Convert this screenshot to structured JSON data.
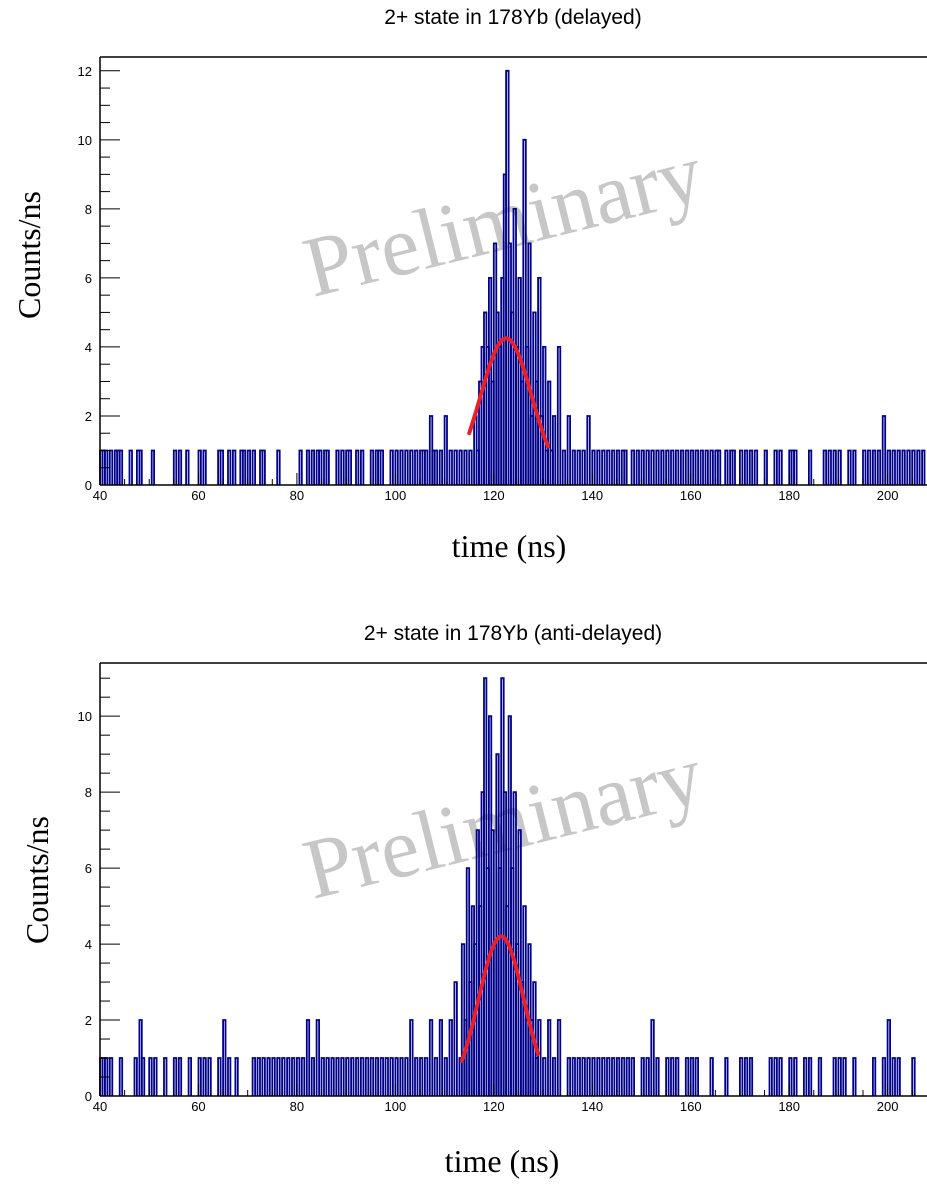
{
  "chart_data": [
    {
      "type": "histogram",
      "title": "2+ state in 178Yb (delayed)",
      "xlabel": "time (ns)",
      "ylabel": "Counts/ns",
      "watermark": "Preliminary",
      "xlim": [
        40,
        208
      ],
      "ylim": [
        0,
        12.4
      ],
      "xticks": [
        40,
        60,
        80,
        100,
        120,
        140,
        160,
        180,
        200
      ],
      "yticks": [
        0,
        2,
        4,
        6,
        8,
        10,
        12
      ],
      "grid": false,
      "histogram_color": "#00008b",
      "fit_color": "#e8202a",
      "bin_width_ns": 0.5,
      "fit": {
        "type": "gaussian",
        "amplitude": 4.25,
        "mean": 122.5,
        "sigma": 5.2,
        "range": [
          115,
          131
        ]
      },
      "peak_bins": [
        [
          116.0,
          2
        ],
        [
          116.5,
          1
        ],
        [
          117.0,
          3
        ],
        [
          117.5,
          4
        ],
        [
          118.0,
          5
        ],
        [
          118.5,
          4
        ],
        [
          119.0,
          6
        ],
        [
          119.5,
          3
        ],
        [
          120.0,
          7
        ],
        [
          120.5,
          5
        ],
        [
          121.0,
          4
        ],
        [
          121.5,
          6
        ],
        [
          122.0,
          9
        ],
        [
          122.5,
          12
        ],
        [
          123.0,
          7
        ],
        [
          123.5,
          5
        ],
        [
          124.0,
          8
        ],
        [
          124.5,
          4
        ],
        [
          125.0,
          6
        ],
        [
          125.5,
          3
        ],
        [
          126.0,
          10
        ],
        [
          126.5,
          4
        ],
        [
          127.0,
          7
        ],
        [
          127.5,
          2
        ],
        [
          128.0,
          5
        ],
        [
          128.5,
          3
        ],
        [
          129.0,
          6
        ],
        [
          129.5,
          2
        ],
        [
          130.0,
          4
        ],
        [
          130.5,
          1
        ],
        [
          131.0,
          3
        ],
        [
          131.5,
          1
        ],
        [
          132.0,
          2
        ],
        [
          133.0,
          4
        ],
        [
          134.0,
          1
        ],
        [
          135.0,
          2
        ]
      ],
      "background_twos": [
        107,
        110,
        127,
        139,
        199
      ],
      "background_ones": [
        40,
        40.5,
        41,
        42,
        43,
        43.5,
        44,
        46,
        47.5,
        48,
        50.5,
        55,
        56,
        57.5,
        60,
        61,
        64,
        64.5,
        66,
        67,
        68.5,
        69,
        70,
        71,
        72.5,
        73,
        76,
        80.5,
        82,
        83,
        84,
        84.5,
        85.5,
        86,
        88,
        89,
        90,
        90.5,
        92,
        93,
        95,
        96,
        96.5,
        97,
        99,
        100,
        101,
        102,
        103,
        104,
        105,
        105.5,
        106,
        107.5,
        108,
        109,
        111,
        112,
        113,
        114,
        115,
        136,
        137,
        138,
        140,
        141,
        142,
        143,
        144,
        145,
        146,
        146.5,
        148,
        149,
        150,
        151,
        152,
        153,
        154,
        155,
        156,
        157,
        158,
        159,
        160,
        161,
        162,
        163,
        164,
        165,
        165.5,
        167,
        168,
        168.5,
        170,
        171,
        172,
        173,
        175,
        177,
        178,
        180,
        180.5,
        181,
        184,
        187,
        188,
        189,
        190,
        192,
        193,
        195,
        196,
        197,
        198,
        200,
        201,
        202,
        203,
        204,
        205,
        206,
        207
      ]
    },
    {
      "type": "histogram",
      "title": "2+ state in 178Yb (anti-delayed)",
      "xlabel": "time (ns)",
      "ylabel": "Counts/ns",
      "watermark": "Preliminary",
      "xlim": [
        40,
        208
      ],
      "ylim": [
        0,
        11.4
      ],
      "xticks": [
        40,
        60,
        80,
        100,
        120,
        140,
        160,
        180,
        200
      ],
      "yticks": [
        0,
        2,
        4,
        6,
        8,
        10
      ],
      "grid": false,
      "histogram_color": "#00008b",
      "fit_color": "#e8202a",
      "bin_width_ns": 0.5,
      "fit": {
        "type": "gaussian",
        "amplitude": 4.2,
        "mean": 121.5,
        "sigma": 4.6,
        "range": [
          113.5,
          129
        ]
      },
      "peak_bins": [
        [
          111.0,
          2
        ],
        [
          112.0,
          3
        ],
        [
          113.0,
          1
        ],
        [
          113.5,
          4
        ],
        [
          114.0,
          2
        ],
        [
          114.5,
          6
        ],
        [
          115.0,
          3
        ],
        [
          115.5,
          5
        ],
        [
          116.0,
          4
        ],
        [
          116.5,
          7
        ],
        [
          117.0,
          5
        ],
        [
          117.5,
          8
        ],
        [
          118.0,
          11
        ],
        [
          118.5,
          6
        ],
        [
          119.0,
          10
        ],
        [
          119.5,
          7
        ],
        [
          120.0,
          4
        ],
        [
          120.5,
          9
        ],
        [
          121.0,
          6
        ],
        [
          121.5,
          11
        ],
        [
          122.0,
          8
        ],
        [
          122.5,
          5
        ],
        [
          123.0,
          10
        ],
        [
          123.5,
          6
        ],
        [
          124.0,
          8
        ],
        [
          124.5,
          4
        ],
        [
          125.0,
          7
        ],
        [
          125.5,
          3
        ],
        [
          126.0,
          5
        ],
        [
          126.5,
          2
        ],
        [
          127.0,
          4
        ],
        [
          127.5,
          2
        ],
        [
          128.0,
          3
        ],
        [
          128.5,
          1
        ],
        [
          129.0,
          2
        ],
        [
          130.0,
          1
        ],
        [
          131.0,
          2
        ],
        [
          132.0,
          1
        ],
        [
          133.0,
          2
        ]
      ],
      "background_twos": [
        48,
        65,
        82,
        84,
        103,
        107,
        109,
        152,
        200
      ],
      "background_ones": [
        40,
        40.5,
        41,
        42,
        44,
        47,
        48.5,
        50,
        51,
        53,
        55,
        56,
        58,
        60,
        61,
        62,
        64,
        66,
        67.5,
        71,
        72,
        73,
        74,
        75,
        76,
        77,
        78,
        79,
        80,
        81,
        83,
        85,
        86,
        87,
        88,
        89,
        90,
        91,
        92,
        93,
        94,
        95,
        96,
        97,
        98,
        99,
        100,
        101,
        102,
        104,
        105,
        106,
        108,
        110,
        135,
        136,
        137,
        138,
        139,
        140,
        141,
        142,
        143,
        144,
        145,
        146,
        147,
        148,
        150,
        151,
        153,
        155,
        156,
        157,
        159,
        160,
        161,
        164,
        167,
        170,
        171,
        172,
        176,
        177,
        178,
        180,
        181,
        183,
        184,
        186,
        189,
        190,
        191,
        193,
        197,
        199,
        201,
        202,
        205
      ]
    }
  ]
}
